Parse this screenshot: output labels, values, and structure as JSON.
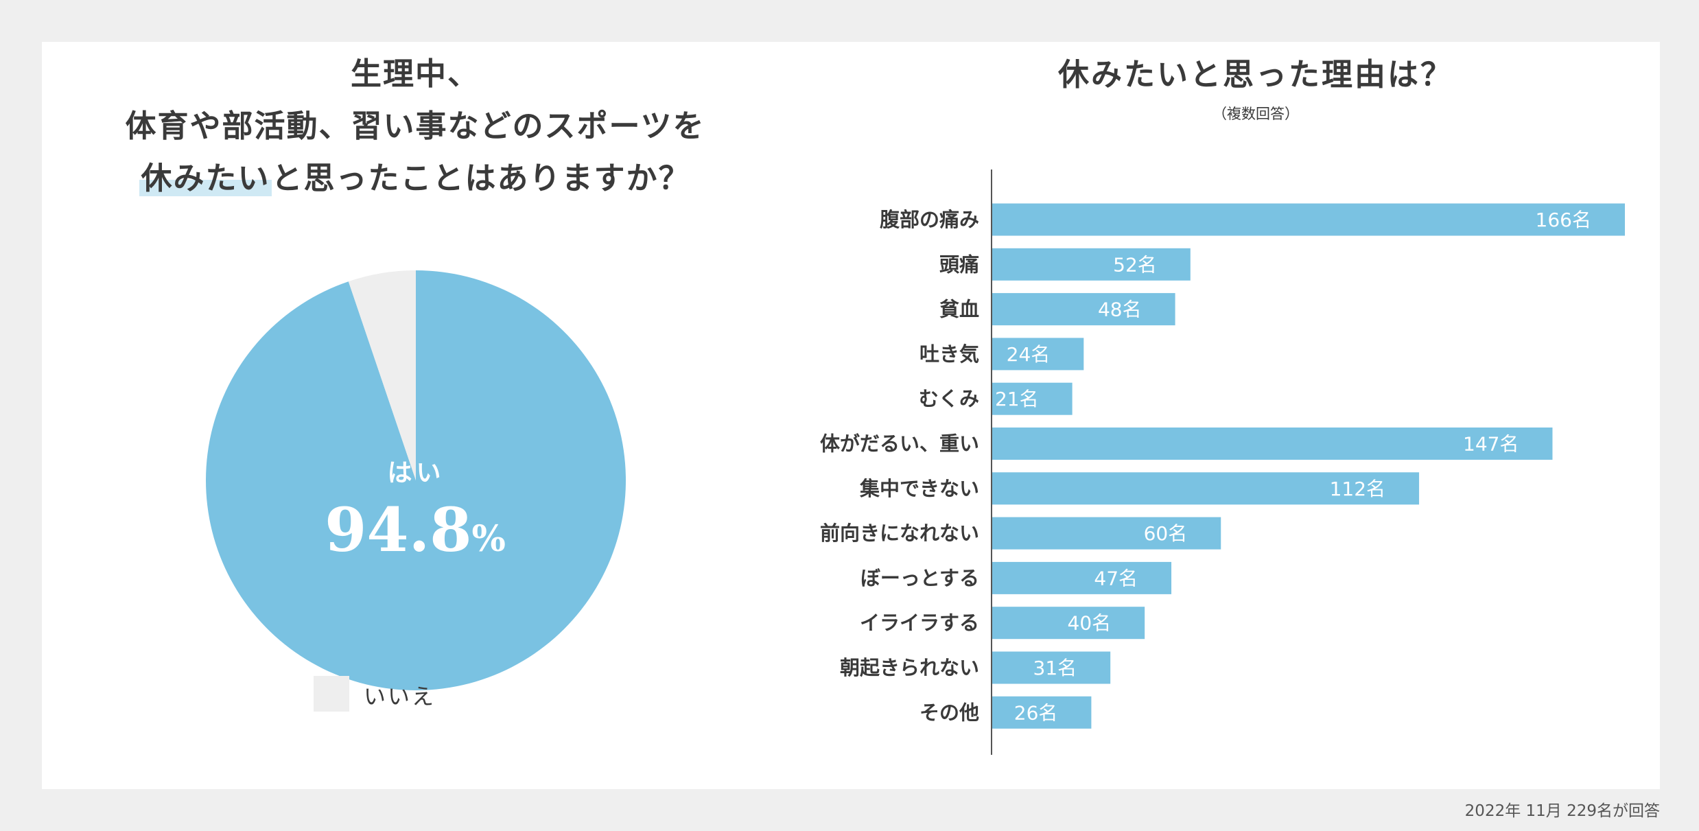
{
  "colors": {
    "accent": "#7ac2e2",
    "no_slice": "#eeeeee",
    "background": "#efefef",
    "panel": "#ffffff",
    "text": "#3a3a3a"
  },
  "left": {
    "title_line1": "生理中、",
    "title_line2": "体育や部活動、習い事などのスポーツを",
    "title_line3_highlight": "休みたい",
    "title_line3_rest": "と思ったことはありますか？",
    "yes_label": "はい",
    "yes_value": "94.8",
    "yes_unit": "%",
    "legend_no": "いいえ"
  },
  "right": {
    "title": "休みたいと思った理由は？",
    "subtitle": "（複数回答）",
    "unit_suffix": "名"
  },
  "footer": "2022年 11月  229名が回答",
  "chart_data": [
    {
      "type": "pie",
      "slices": [
        {
          "label": "はい",
          "value": 94.8
        },
        {
          "label": "いいえ",
          "value": 5.2
        }
      ],
      "legend": [
        "いいえ"
      ]
    },
    {
      "type": "bar",
      "orientation": "horizontal",
      "title": "休みたいと思った理由は？",
      "subtitle": "（複数回答）",
      "categories": [
        "腹部の痛み",
        "頭痛",
        "貧血",
        "吐き気",
        "むくみ",
        "体がだるい、重い",
        "集中できない",
        "前向きになれない",
        "ぼーっとする",
        "イライラする",
        "朝起きられない",
        "その他"
      ],
      "values": [
        166,
        52,
        48,
        24,
        21,
        147,
        112,
        60,
        47,
        40,
        31,
        26
      ],
      "value_labels": [
        "166名",
        "52名",
        "48名",
        "24名",
        "21名",
        "147名",
        "112名",
        "60名",
        "47名",
        "40名",
        "31名",
        "26名"
      ],
      "unit": "名",
      "xlim": [
        0,
        166
      ]
    }
  ]
}
